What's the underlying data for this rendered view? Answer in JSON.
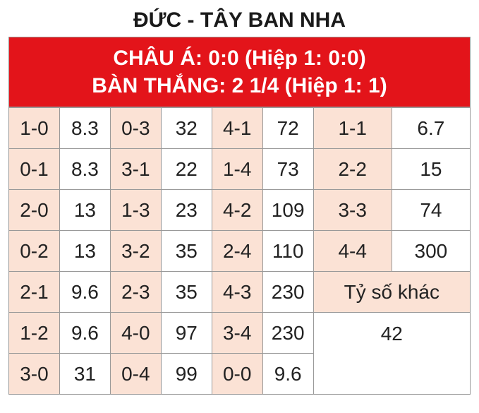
{
  "title": "ĐỨC - TÂY BAN NHA",
  "header": {
    "line1": "CHÂU Á: 0:0 (Hiệp 1: 0:0)",
    "line2": "BÀN THẮNG: 2 1/4 (Hiệp 1: 1)"
  },
  "styles": {
    "title_fontsize": 30,
    "title_color": "#1a1a1a",
    "header_bg": "#e3141a",
    "header_color": "#ffffff",
    "header_fontsize": 30,
    "score_bg": "#fbe2d5",
    "odd_bg": "#ffffff",
    "alt_score_bg": "#fbe2d5",
    "other_bg": "#fbe2d5",
    "cell_fontsize": 28,
    "border_color": "#999999"
  },
  "rows": [
    {
      "c1s": "1-0",
      "c1o": "8.3",
      "c2s": "0-3",
      "c2o": "32",
      "c3s": "4-1",
      "c3o": "72",
      "c4s": "1-1",
      "c4o": "6.7"
    },
    {
      "c1s": "0-1",
      "c1o": "8.3",
      "c2s": "3-1",
      "c2o": "22",
      "c3s": "1-4",
      "c3o": "73",
      "c4s": "2-2",
      "c4o": "15"
    },
    {
      "c1s": "2-0",
      "c1o": "13",
      "c2s": "1-3",
      "c2o": "23",
      "c3s": "4-2",
      "c3o": "109",
      "c4s": "3-3",
      "c4o": "74"
    },
    {
      "c1s": "0-2",
      "c1o": "13",
      "c2s": "3-2",
      "c2o": "35",
      "c3s": "2-4",
      "c3o": "110",
      "c4s": "4-4",
      "c4o": "300"
    },
    {
      "c1s": "2-1",
      "c1o": "9.6",
      "c2s": "2-3",
      "c2o": "35",
      "c3s": "4-3",
      "c3o": "230"
    },
    {
      "c1s": "1-2",
      "c1o": "9.6",
      "c2s": "4-0",
      "c2o": "97",
      "c3s": "3-4",
      "c3o": "230"
    },
    {
      "c1s": "3-0",
      "c1o": "31",
      "c2s": "0-4",
      "c2o": "99",
      "c3s": "0-0",
      "c3o": "9.6"
    }
  ],
  "other": {
    "label": "Tỷ số khác",
    "value": "42"
  }
}
